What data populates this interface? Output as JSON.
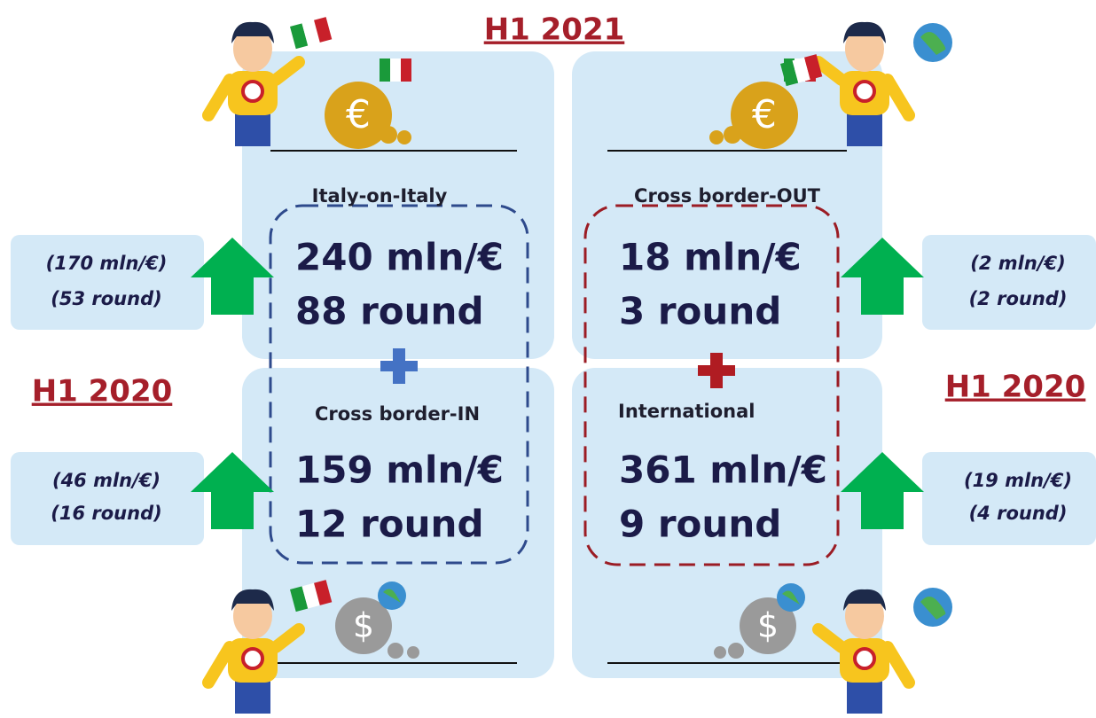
{
  "header": {
    "title": "H1 2021"
  },
  "left_label": "H1 2020",
  "right_label": "H1 2020",
  "quadrants": [
    {
      "title": "Italy-on-Italy",
      "amount": "240 mln/€",
      "rounds": "88 round",
      "prev_amount": "(170 mln/€)",
      "prev_rounds": "(53 round)"
    },
    {
      "title": "Cross border-OUT",
      "amount": "18 mln/€",
      "rounds": "3 round",
      "prev_amount": "(2 mln/€)",
      "prev_rounds": "(2 round)"
    },
    {
      "title": "Cross border-IN",
      "amount": "159 mln/€",
      "rounds": "12 round",
      "prev_amount": "(46 mln/€)",
      "prev_rounds": "(16 round)"
    },
    {
      "title": "International",
      "amount": "361 mln/€",
      "rounds": "9 round",
      "prev_amount": "(19 mln/€)",
      "prev_rounds": "(4 round)"
    }
  ]
}
